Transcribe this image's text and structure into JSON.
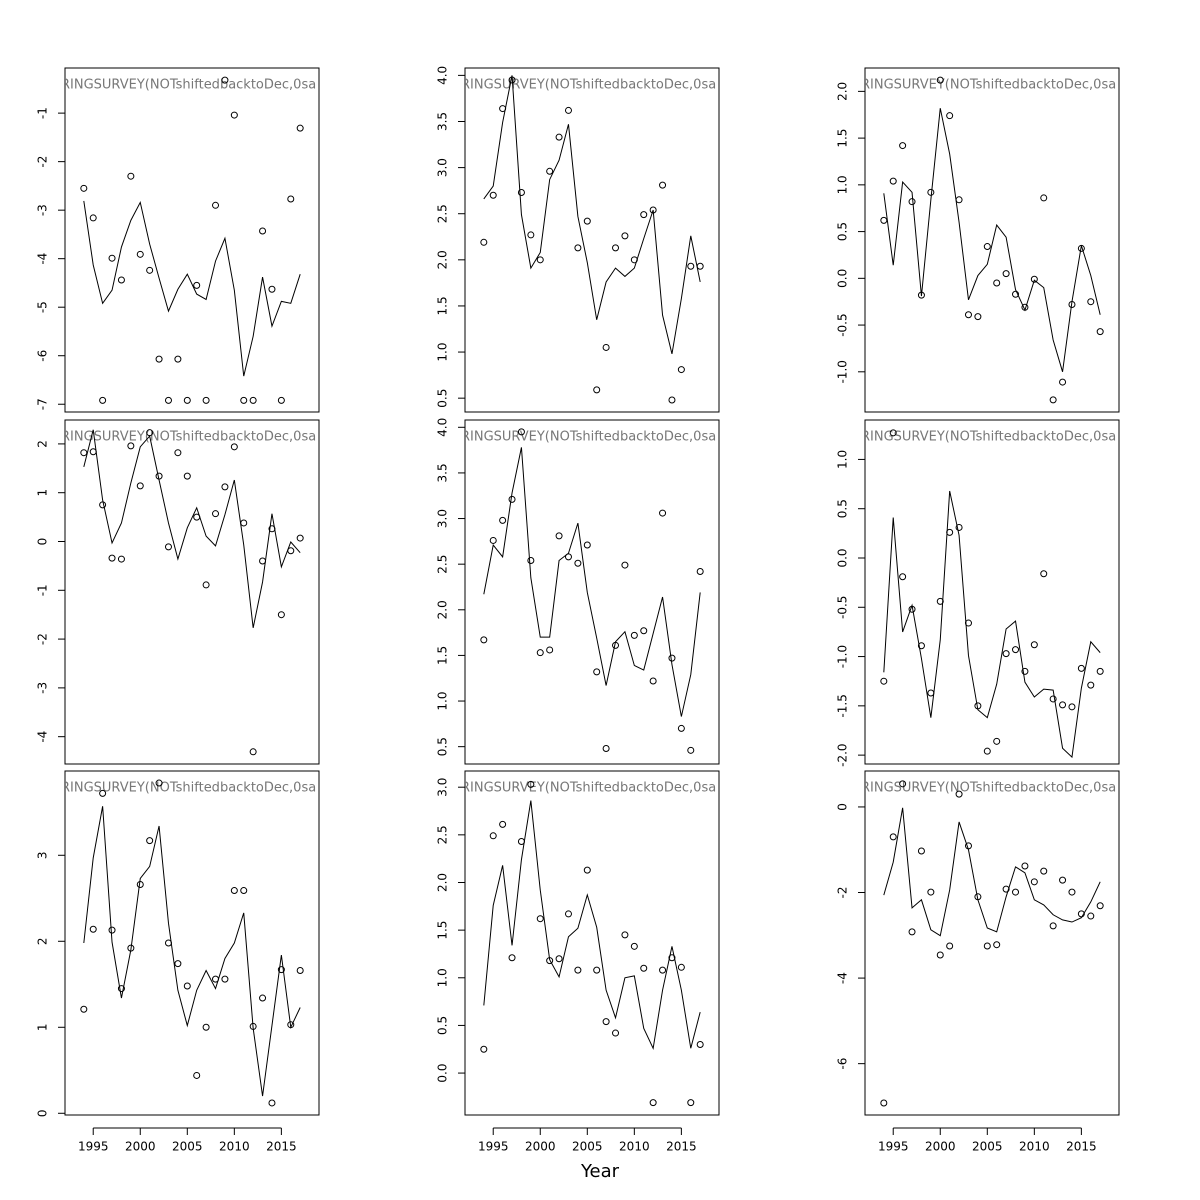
{
  "chart_data": [
    {
      "type": "line",
      "title": "RINGSURVEY(NOTshiftedbacktoDec,0sa",
      "x": [
        1994,
        1995,
        1996,
        1997,
        1998,
        1999,
        2000,
        2001,
        2002,
        2003,
        2004,
        2005,
        2006,
        2007,
        2008,
        2009,
        2010,
        2011,
        2012,
        2013,
        2014,
        2015,
        2016,
        2017
      ],
      "xlim": [
        1992,
        2019
      ],
      "ylim": [
        -7.16,
        -0.07
      ],
      "yticks": [
        -7,
        -6,
        -5,
        -4,
        -3,
        -2,
        -1
      ],
      "series": [
        {
          "type": "scatter",
          "color": "#000000",
          "values": [
            -2.55,
            -3.16,
            -6.92,
            -3.99,
            -4.44,
            -2.3,
            -3.91,
            -4.24,
            -6.07,
            -6.92,
            -6.07,
            -6.92,
            -4.55,
            -6.92,
            -2.9,
            -0.32,
            -1.04,
            -6.92,
            -6.92,
            -3.43,
            -4.63,
            -6.92,
            -2.77,
            -1.31
          ]
        },
        {
          "type": "line",
          "color": "#000000",
          "values": [
            -2.81,
            -4.13,
            -4.92,
            -4.65,
            -3.76,
            -3.21,
            -2.84,
            -3.7,
            -4.4,
            -5.08,
            -4.63,
            -4.32,
            -4.73,
            -4.84,
            -4.05,
            -3.58,
            -4.65,
            -6.42,
            -5.6,
            -4.38,
            -5.39,
            -4.88,
            -4.92,
            -4.32
          ]
        }
      ]
    },
    {
      "type": "line",
      "title": "RINGSURVEY(NOTshiftedbacktoDec,0sa",
      "x": [
        1994,
        1995,
        1996,
        1997,
        1998,
        1999,
        2000,
        2001,
        2002,
        2003,
        2004,
        2005,
        2006,
        2007,
        2008,
        2009,
        2010,
        2011,
        2012,
        2013,
        2014,
        2015,
        2016,
        2017
      ],
      "xlim": [
        1992,
        2019
      ],
      "ylim": [
        0.35,
        4.08
      ],
      "yticks": [
        0.5,
        {
          "value": 1,
          "label": "1.0"
        },
        1.5,
        {
          "value": 2,
          "label": "2.0"
        },
        2.5,
        {
          "value": 3,
          "label": "3.0"
        },
        3.5,
        {
          "value": 4,
          "label": "4.0"
        }
      ],
      "series": [
        {
          "type": "scatter",
          "color": "#000000",
          "values": [
            2.19,
            2.7,
            3.64,
            3.95,
            2.73,
            2.27,
            2.0,
            2.96,
            3.33,
            3.62,
            2.13,
            2.42,
            0.59,
            1.05,
            2.13,
            2.26,
            2.0,
            2.49,
            2.54,
            2.81,
            0.48,
            0.81,
            1.93,
            1.93
          ]
        },
        {
          "type": "line",
          "color": "#000000",
          "values": [
            2.66,
            2.8,
            3.49,
            4.0,
            2.49,
            1.91,
            2.08,
            2.87,
            3.08,
            3.47,
            2.47,
            1.97,
            1.35,
            1.76,
            1.91,
            1.82,
            1.91,
            2.23,
            2.54,
            1.4,
            0.98,
            1.58,
            2.26,
            1.76
          ]
        }
      ]
    },
    {
      "type": "line",
      "title": "RINGSURVEY(NOTshiftedbacktoDec,0sa",
      "x": [
        1994,
        1995,
        1996,
        1997,
        1998,
        1999,
        2000,
        2001,
        2002,
        2003,
        2004,
        2005,
        2006,
        2007,
        2008,
        2009,
        2010,
        2011,
        2012,
        2013,
        2014,
        2015,
        2016,
        2017
      ],
      "xlim": [
        1992,
        2019
      ],
      "ylim": [
        -1.43,
        2.25
      ],
      "yticks": [
        {
          "value": -1,
          "label": "-1.0"
        },
        -0.5,
        {
          "value": 0,
          "label": "0.0"
        },
        0.5,
        {
          "value": 1,
          "label": "1.0"
        },
        1.5,
        {
          "value": 2,
          "label": "2.0"
        }
      ],
      "series": [
        {
          "type": "scatter",
          "color": "#000000",
          "values": [
            0.62,
            1.04,
            1.42,
            0.82,
            -0.18,
            0.92,
            2.12,
            1.74,
            0.84,
            -0.39,
            -0.41,
            0.34,
            -0.05,
            0.05,
            -0.17,
            -0.31,
            -0.01,
            0.86,
            -1.3,
            -1.11,
            -0.28,
            0.32,
            -0.25,
            -0.57
          ]
        },
        {
          "type": "line",
          "color": "#000000",
          "values": [
            0.91,
            0.14,
            1.03,
            0.92,
            -0.19,
            0.84,
            1.82,
            1.33,
            0.6,
            -0.23,
            0.03,
            0.15,
            0.57,
            0.44,
            -0.12,
            -0.34,
            -0.02,
            -0.1,
            -0.66,
            -1.0,
            -0.25,
            0.35,
            0.03,
            -0.39
          ]
        }
      ]
    },
    {
      "type": "line",
      "title": "RINGSURVEY(NOTshiftedbacktoDec,0sa",
      "x": [
        1994,
        1995,
        1996,
        1997,
        1998,
        1999,
        2000,
        2001,
        2002,
        2003,
        2004,
        2005,
        2006,
        2007,
        2008,
        2009,
        2010,
        2011,
        2012,
        2013,
        2014,
        2015,
        2016,
        2017
      ],
      "xlim": [
        1992,
        2019
      ],
      "ylim": [
        -4.56,
        2.49
      ],
      "yticks": [
        -4,
        -3,
        -2,
        -1,
        0,
        1,
        2
      ],
      "series": [
        {
          "type": "scatter",
          "color": "#000000",
          "values": [
            1.82,
            1.84,
            0.75,
            -0.34,
            -0.36,
            1.96,
            1.14,
            2.23,
            1.34,
            -0.11,
            1.82,
            1.34,
            0.5,
            -0.89,
            0.57,
            1.12,
            1.94,
            0.38,
            -4.31,
            -0.4,
            0.26,
            -1.5,
            -0.19,
            0.07
          ]
        },
        {
          "type": "line",
          "color": "#000000",
          "values": [
            1.53,
            2.29,
            0.85,
            -0.03,
            0.38,
            1.2,
            1.94,
            2.16,
            1.26,
            0.38,
            -0.36,
            0.28,
            0.69,
            0.11,
            -0.09,
            0.55,
            1.26,
            -0.07,
            -1.77,
            -0.83,
            0.57,
            -0.52,
            -0.01,
            -0.23
          ]
        }
      ]
    },
    {
      "type": "line",
      "title": "RINGSURVEY(NOTshiftedbacktoDec,0sa",
      "x": [
        1994,
        1995,
        1996,
        1997,
        1998,
        1999,
        2000,
        2001,
        2002,
        2003,
        2004,
        2005,
        2006,
        2007,
        2008,
        2009,
        2010,
        2011,
        2012,
        2013,
        2014,
        2015,
        2016,
        2017
      ],
      "xlim": [
        1992,
        2019
      ],
      "ylim": [
        0.31,
        4.08
      ],
      "yticks": [
        0.5,
        {
          "value": 1,
          "label": "1.0"
        },
        1.5,
        {
          "value": 2,
          "label": "2.0"
        },
        2.5,
        {
          "value": 3,
          "label": "3.0"
        },
        3.5,
        {
          "value": 4,
          "label": "4.0"
        }
      ],
      "series": [
        {
          "type": "scatter",
          "color": "#000000",
          "values": [
            1.67,
            2.76,
            2.98,
            3.21,
            3.95,
            2.54,
            1.53,
            1.56,
            2.81,
            2.58,
            2.51,
            2.71,
            1.32,
            0.48,
            1.61,
            2.49,
            1.72,
            1.77,
            1.22,
            3.06,
            1.47,
            0.7,
            0.46,
            2.42
          ]
        },
        {
          "type": "line",
          "color": "#000000",
          "values": [
            2.17,
            2.71,
            2.58,
            3.28,
            3.78,
            2.35,
            1.7,
            1.7,
            2.54,
            2.62,
            2.95,
            2.19,
            1.69,
            1.17,
            1.65,
            1.76,
            1.39,
            1.34,
            1.74,
            2.14,
            1.4,
            0.83,
            1.29,
            2.19
          ]
        }
      ]
    },
    {
      "type": "line",
      "title": "RINGSURVEY(NOTshiftedbacktoDec,0sa",
      "x": [
        1994,
        1995,
        1996,
        1997,
        1998,
        1999,
        2000,
        2001,
        2002,
        2003,
        2004,
        2005,
        2006,
        2007,
        2008,
        2009,
        2010,
        2011,
        2012,
        2013,
        2014,
        2015,
        2016,
        2017
      ],
      "xlim": [
        1992,
        2019
      ],
      "ylim": [
        -2.09,
        1.4
      ],
      "yticks": [
        {
          "value": -2,
          "label": "-2.0"
        },
        -1.5,
        {
          "value": -1,
          "label": "-1.0"
        },
        -0.5,
        {
          "value": 0,
          "label": "0.0"
        },
        0.5,
        {
          "value": 1,
          "label": "1.0"
        }
      ],
      "series": [
        {
          "type": "scatter",
          "color": "#000000",
          "values": [
            -1.25,
            1.27,
            -0.19,
            -0.52,
            -0.89,
            -1.37,
            -0.44,
            0.26,
            0.31,
            -0.66,
            -1.5,
            -1.96,
            -1.86,
            -0.97,
            -0.93,
            -1.15,
            -0.88,
            -0.16,
            -1.43,
            -1.49,
            -1.51,
            -1.12,
            -1.29,
            -1.15
          ]
        },
        {
          "type": "line",
          "color": "#000000",
          "values": [
            -1.16,
            0.41,
            -0.75,
            -0.48,
            -1.02,
            -1.62,
            -0.83,
            0.68,
            0.23,
            -0.99,
            -1.54,
            -1.62,
            -1.28,
            -0.72,
            -0.64,
            -1.26,
            -1.41,
            -1.33,
            -1.34,
            -1.93,
            -2.02,
            -1.32,
            -0.85,
            -0.96
          ]
        }
      ]
    },
    {
      "type": "line",
      "title": "RINGSURVEY(NOTshiftedbacktoDec,0sa",
      "x": [
        1994,
        1995,
        1996,
        1997,
        1998,
        1999,
        2000,
        2001,
        2002,
        2003,
        2004,
        2005,
        2006,
        2007,
        2008,
        2009,
        2010,
        2011,
        2012,
        2013,
        2014,
        2015,
        2016,
        2017
      ],
      "xlim": [
        1992,
        2019
      ],
      "xticks": [
        1995,
        2000,
        2005,
        2010,
        2015
      ],
      "ylim": [
        -0.02,
        3.98
      ],
      "yticks": [
        0,
        1,
        2,
        3
      ],
      "series": [
        {
          "type": "scatter",
          "color": "#000000",
          "values": [
            1.21,
            2.14,
            3.72,
            2.13,
            1.45,
            1.92,
            2.66,
            3.17,
            3.84,
            1.98,
            1.74,
            1.48,
            0.44,
            1.0,
            1.56,
            1.56,
            2.59,
            2.59,
            1.01,
            1.34,
            0.12,
            1.67,
            1.03,
            1.66
          ]
        },
        {
          "type": "line",
          "color": "#000000",
          "values": [
            1.98,
            2.97,
            3.57,
            1.99,
            1.34,
            1.9,
            2.73,
            2.87,
            3.34,
            2.21,
            1.43,
            1.02,
            1.43,
            1.66,
            1.45,
            1.8,
            1.98,
            2.33,
            0.99,
            0.2,
            1.02,
            1.84,
            1.0,
            1.23
          ]
        }
      ]
    },
    {
      "type": "line",
      "title": "RINGSURVEY(NOTshiftedbacktoDec,0sa",
      "xlabel": "Year",
      "x": [
        1994,
        1995,
        1996,
        1997,
        1998,
        1999,
        2000,
        2001,
        2002,
        2003,
        2004,
        2005,
        2006,
        2007,
        2008,
        2009,
        2010,
        2011,
        2012,
        2013,
        2014,
        2015,
        2016,
        2017
      ],
      "xlim": [
        1992,
        2019
      ],
      "xticks": [
        1995,
        2000,
        2005,
        2010,
        2015
      ],
      "ylim": [
        -0.44,
        3.17
      ],
      "yticks": [
        {
          "value": 0,
          "label": "0.0"
        },
        0.5,
        {
          "value": 1,
          "label": "1.0"
        },
        1.5,
        {
          "value": 2,
          "label": "2.0"
        },
        2.5,
        {
          "value": 3,
          "label": "3.0"
        }
      ],
      "series": [
        {
          "type": "scatter",
          "color": "#000000",
          "values": [
            0.25,
            2.49,
            2.61,
            1.21,
            2.43,
            3.03,
            1.62,
            1.18,
            1.2,
            1.67,
            1.08,
            2.13,
            1.08,
            0.54,
            0.42,
            1.45,
            1.33,
            1.1,
            -0.31,
            1.08,
            1.21,
            1.11,
            -0.31,
            0.3
          ]
        },
        {
          "type": "line",
          "color": "#000000",
          "values": [
            0.71,
            1.76,
            2.18,
            1.34,
            2.24,
            2.86,
            1.92,
            1.19,
            1.01,
            1.43,
            1.52,
            1.87,
            1.53,
            0.87,
            0.58,
            1.0,
            1.02,
            0.47,
            0.26,
            0.87,
            1.33,
            0.87,
            0.26,
            0.64
          ]
        }
      ]
    },
    {
      "type": "line",
      "title": "RINGSURVEY(NOTshiftedbacktoDec,0sa",
      "x": [
        1994,
        1995,
        1996,
        1997,
        1998,
        1999,
        2000,
        2001,
        2002,
        2003,
        2004,
        2005,
        2006,
        2007,
        2008,
        2009,
        2010,
        2011,
        2012,
        2013,
        2014,
        2015,
        2016,
        2017
      ],
      "xlim": [
        1992,
        2019
      ],
      "xticks": [
        1995,
        2000,
        2005,
        2010,
        2015
      ],
      "ylim": [
        -7.2,
        0.84
      ],
      "yticks": [
        -6,
        -4,
        -2,
        0
      ],
      "series": [
        {
          "type": "scatter",
          "color": "#000000",
          "values": [
            -6.92,
            -0.7,
            0.54,
            -2.92,
            -1.03,
            -1.99,
            -3.46,
            -3.25,
            0.3,
            -0.91,
            -2.1,
            -3.25,
            -3.22,
            -1.92,
            -1.99,
            -1.38,
            -1.75,
            -1.5,
            -2.78,
            -1.71,
            -1.99,
            -2.5,
            -2.55,
            -2.31
          ]
        },
        {
          "type": "line",
          "color": "#000000",
          "values": [
            -2.06,
            -1.29,
            -0.02,
            -2.36,
            -2.17,
            -2.87,
            -3.01,
            -1.94,
            -0.35,
            -1.0,
            -2.17,
            -2.83,
            -2.92,
            -2.1,
            -1.4,
            -1.54,
            -2.17,
            -2.29,
            -2.52,
            -2.64,
            -2.69,
            -2.59,
            -2.22,
            -1.75
          ]
        }
      ]
    }
  ]
}
